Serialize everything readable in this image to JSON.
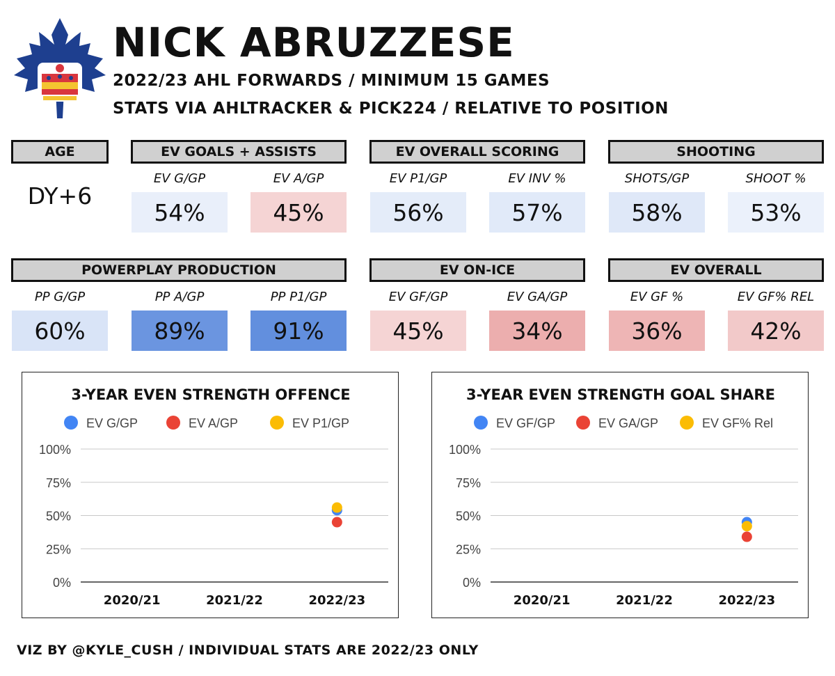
{
  "header": {
    "name": "NICK ABRUZZESE",
    "line1": "2022/23 AHL FORWARDS / MINIMUM 15 GAMES",
    "line2": "STATS VIA AHLTRACKER & PICK224 / RELATIVE TO POSITION"
  },
  "age": {
    "label": "AGE",
    "value": "DY+6"
  },
  "sections": {
    "ev_ga": "EV GOALS + ASSISTS",
    "ev_scoring": "EV OVERALL SCORING",
    "shooting": "SHOOTING",
    "pp": "POWERPLAY PRODUCTION",
    "ev_onice": "EV ON-ICE",
    "ev_overall": "EV OVERALL"
  },
  "tiles": [
    {
      "label": "EV G/GP",
      "value": "54%",
      "pct": 54
    },
    {
      "label": "EV A/GP",
      "value": "45%",
      "pct": 45
    },
    {
      "label": "EV P1/GP",
      "value": "56%",
      "pct": 56
    },
    {
      "label": "EV INV %",
      "value": "57%",
      "pct": 57
    },
    {
      "label": "SHOTS/GP",
      "value": "58%",
      "pct": 58
    },
    {
      "label": "SHOOT %",
      "value": "53%",
      "pct": 53
    },
    {
      "label": "PP G/GP",
      "value": "60%",
      "pct": 60
    },
    {
      "label": "PP A/GP",
      "value": "89%",
      "pct": 89
    },
    {
      "label": "PP P1/GP",
      "value": "91%",
      "pct": 91
    },
    {
      "label": "EV GF/GP",
      "value": "45%",
      "pct": 45
    },
    {
      "label": "EV GA/GP",
      "value": "34%",
      "pct": 34
    },
    {
      "label": "EV GF %",
      "value": "36%",
      "pct": 36
    },
    {
      "label": "EV GF% REL",
      "value": "42%",
      "pct": 42
    }
  ],
  "colors": {
    "blue": "#4285f4",
    "red": "#ea4335",
    "yellow": "#fbbc04",
    "logo": "#1e3f8f"
  },
  "chart_data": [
    {
      "type": "scatter",
      "title": "3-YEAR EVEN STRENGTH OFFENCE",
      "categories": [
        "2020/21",
        "2021/22",
        "2022/23"
      ],
      "ylim": [
        0,
        100
      ],
      "yticks": [
        "0%",
        "25%",
        "50%",
        "75%",
        "100%"
      ],
      "legend_position": "top",
      "grid": true,
      "series": [
        {
          "name": "EV G/GP",
          "color": "#4285f4",
          "values": [
            null,
            null,
            54
          ]
        },
        {
          "name": "EV A/GP",
          "color": "#ea4335",
          "values": [
            null,
            null,
            45
          ]
        },
        {
          "name": "EV P1/GP",
          "color": "#fbbc04",
          "values": [
            null,
            null,
            56
          ]
        }
      ]
    },
    {
      "type": "scatter",
      "title": "3-YEAR EVEN STRENGTH GOAL SHARE",
      "categories": [
        "2020/21",
        "2021/22",
        "2022/23"
      ],
      "ylim": [
        0,
        100
      ],
      "yticks": [
        "0%",
        "25%",
        "50%",
        "75%",
        "100%"
      ],
      "legend_position": "top",
      "grid": true,
      "series": [
        {
          "name": "EV GF/GP",
          "color": "#4285f4",
          "values": [
            null,
            null,
            45
          ]
        },
        {
          "name": "EV GA/GP",
          "color": "#ea4335",
          "values": [
            null,
            null,
            34
          ]
        },
        {
          "name": "EV GF% Rel",
          "color": "#fbbc04",
          "values": [
            null,
            null,
            42
          ]
        }
      ]
    }
  ],
  "footer": "VIZ BY @KYLE_CUSH / INDIVIDUAL STATS ARE 2022/23 ONLY"
}
